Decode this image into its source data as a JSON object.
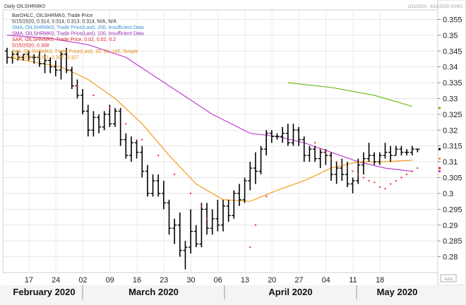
{
  "chart_data": {
    "type": "line",
    "title": "Daily OILSHRMK0",
    "header_range": "2/11/2020 - 5/21/2020 (CHG)",
    "scale_badge": "Auto",
    "legend": [
      {
        "text": "BarOHLC, OILSHRMK0, Trade Price",
        "color": "#333333"
      },
      {
        "text": "5/15/2020, 0.314, 0.314, 0.313, 0.314, N/A, N/A",
        "color": "#333333"
      },
      {
        "text": "SMA, OILSHRMK0, Trade Price(Last), 200, Insufficient Data",
        "color": "#3a8fd0"
      },
      {
        "text": "SMA, OILSHRMK0, Trade Price(Last), 100, Insufficient Data",
        "color": "#9a2ab0"
      },
      {
        "text": "SAR, OILSHRMK0, Trade Price, 0.02, 0.02, 0.2",
        "color": "#e02020"
      },
      {
        "text": "5/15/2020, 0.308",
        "color": "#e02020"
      },
      {
        "text": "IMA, OILSHRMK0, Trade Price(Last), 20, 50, 100, Simple",
        "color": "#e08a10"
      },
      {
        "text": "5/15/2020, 0.311, 0.307, 0.327",
        "color": "#e08a10"
      }
    ],
    "y_ticks": [
      "0.355",
      "0.35",
      "0.345",
      "0.34",
      "0.335",
      "0.33",
      "0.325",
      "0.32",
      "0.315",
      "0.31",
      "0.305",
      "0.3",
      "0.295",
      "0.29",
      "0.285",
      "0.28"
    ],
    "ylim": [
      0.275,
      0.358
    ],
    "x_ticks": [
      "17",
      "24",
      "02",
      "09",
      "16",
      "23",
      "30",
      "06",
      "13",
      "20",
      "27",
      "04",
      "11",
      "18"
    ],
    "months": [
      "February 2020",
      "March 2020",
      "April 2020",
      "May 2020"
    ],
    "colors": {
      "bars": "#000000",
      "ma20": "#f39c1e",
      "ma50": "#c040d0",
      "ma100": "#6cbf1a",
      "sar": "#e03020"
    },
    "bars": [
      {
        "d": 0,
        "o": 0.345,
        "h": 0.346,
        "l": 0.341,
        "c": 0.343
      },
      {
        "d": 1,
        "o": 0.343,
        "h": 0.345,
        "l": 0.341,
        "c": 0.344
      },
      {
        "d": 2,
        "o": 0.344,
        "h": 0.345,
        "l": 0.342,
        "c": 0.343
      },
      {
        "d": 3,
        "o": 0.343,
        "h": 0.344,
        "l": 0.342,
        "c": 0.344
      },
      {
        "d": 4,
        "o": 0.344,
        "h": 0.345,
        "l": 0.342,
        "c": 0.343
      },
      {
        "d": 5,
        "o": 0.343,
        "h": 0.344,
        "l": 0.341,
        "c": 0.343
      },
      {
        "d": 6,
        "o": 0.343,
        "h": 0.345,
        "l": 0.34,
        "c": 0.341
      },
      {
        "d": 7,
        "o": 0.341,
        "h": 0.344,
        "l": 0.338,
        "c": 0.342
      },
      {
        "d": 8,
        "o": 0.342,
        "h": 0.343,
        "l": 0.338,
        "c": 0.34
      },
      {
        "d": 9,
        "o": 0.34,
        "h": 0.342,
        "l": 0.337,
        "c": 0.339
      },
      {
        "d": 10,
        "o": 0.339,
        "h": 0.345,
        "l": 0.336,
        "c": 0.344
      },
      {
        "d": 11,
        "o": 0.344,
        "h": 0.346,
        "l": 0.338,
        "c": 0.339
      },
      {
        "d": 12,
        "o": 0.339,
        "h": 0.34,
        "l": 0.333,
        "c": 0.334
      },
      {
        "d": 13,
        "o": 0.334,
        "h": 0.336,
        "l": 0.33,
        "c": 0.331
      },
      {
        "d": 14,
        "o": 0.331,
        "h": 0.333,
        "l": 0.325,
        "c": 0.326
      },
      {
        "d": 15,
        "o": 0.326,
        "h": 0.328,
        "l": 0.318,
        "c": 0.32
      },
      {
        "d": 16,
        "o": 0.32,
        "h": 0.326,
        "l": 0.318,
        "c": 0.324
      },
      {
        "d": 17,
        "o": 0.324,
        "h": 0.325,
        "l": 0.319,
        "c": 0.321
      },
      {
        "d": 18,
        "o": 0.321,
        "h": 0.326,
        "l": 0.32,
        "c": 0.325
      },
      {
        "d": 19,
        "o": 0.325,
        "h": 0.328,
        "l": 0.321,
        "c": 0.322
      },
      {
        "d": 20,
        "o": 0.322,
        "h": 0.327,
        "l": 0.321,
        "c": 0.326
      },
      {
        "d": 21,
        "o": 0.326,
        "h": 0.327,
        "l": 0.315,
        "c": 0.317
      },
      {
        "d": 22,
        "o": 0.317,
        "h": 0.319,
        "l": 0.311,
        "c": 0.312
      },
      {
        "d": 23,
        "o": 0.312,
        "h": 0.318,
        "l": 0.31,
        "c": 0.316
      },
      {
        "d": 24,
        "o": 0.316,
        "h": 0.317,
        "l": 0.311,
        "c": 0.313
      },
      {
        "d": 25,
        "o": 0.313,
        "h": 0.315,
        "l": 0.305,
        "c": 0.307
      },
      {
        "d": 26,
        "o": 0.307,
        "h": 0.309,
        "l": 0.299,
        "c": 0.3
      },
      {
        "d": 27,
        "o": 0.3,
        "h": 0.306,
        "l": 0.299,
        "c": 0.304
      },
      {
        "d": 28,
        "o": 0.304,
        "h": 0.306,
        "l": 0.299,
        "c": 0.3
      },
      {
        "d": 29,
        "o": 0.3,
        "h": 0.304,
        "l": 0.295,
        "c": 0.297
      },
      {
        "d": 30,
        "o": 0.297,
        "h": 0.298,
        "l": 0.287,
        "c": 0.289
      },
      {
        "d": 31,
        "o": 0.289,
        "h": 0.292,
        "l": 0.284,
        "c": 0.29
      },
      {
        "d": 32,
        "o": 0.29,
        "h": 0.294,
        "l": 0.28,
        "c": 0.282
      },
      {
        "d": 33,
        "o": 0.282,
        "h": 0.285,
        "l": 0.276,
        "c": 0.283
      },
      {
        "d": 34,
        "o": 0.283,
        "h": 0.295,
        "l": 0.281,
        "c": 0.288
      },
      {
        "d": 35,
        "o": 0.288,
        "h": 0.29,
        "l": 0.283,
        "c": 0.284
      },
      {
        "d": 36,
        "o": 0.284,
        "h": 0.297,
        "l": 0.283,
        "c": 0.295
      },
      {
        "d": 37,
        "o": 0.295,
        "h": 0.297,
        "l": 0.287,
        "c": 0.289
      },
      {
        "d": 38,
        "o": 0.289,
        "h": 0.295,
        "l": 0.287,
        "c": 0.292
      },
      {
        "d": 39,
        "o": 0.292,
        "h": 0.298,
        "l": 0.288,
        "c": 0.29
      },
      {
        "d": 40,
        "o": 0.29,
        "h": 0.298,
        "l": 0.288,
        "c": 0.296
      },
      {
        "d": 41,
        "o": 0.296,
        "h": 0.298,
        "l": 0.291,
        "c": 0.293
      },
      {
        "d": 42,
        "o": 0.293,
        "h": 0.301,
        "l": 0.292,
        "c": 0.3
      },
      {
        "d": 43,
        "o": 0.3,
        "h": 0.303,
        "l": 0.296,
        "c": 0.298
      },
      {
        "d": 44,
        "o": 0.298,
        "h": 0.305,
        "l": 0.297,
        "c": 0.304
      },
      {
        "d": 45,
        "o": 0.304,
        "h": 0.31,
        "l": 0.301,
        "c": 0.308
      },
      {
        "d": 46,
        "o": 0.308,
        "h": 0.313,
        "l": 0.303,
        "c": 0.307
      },
      {
        "d": 47,
        "o": 0.307,
        "h": 0.315,
        "l": 0.306,
        "c": 0.314
      },
      {
        "d": 48,
        "o": 0.314,
        "h": 0.32,
        "l": 0.312,
        "c": 0.319
      },
      {
        "d": 49,
        "o": 0.319,
        "h": 0.32,
        "l": 0.316,
        "c": 0.318
      },
      {
        "d": 50,
        "o": 0.318,
        "h": 0.319,
        "l": 0.317,
        "c": 0.318
      },
      {
        "d": 51,
        "o": 0.318,
        "h": 0.321,
        "l": 0.316,
        "c": 0.319
      },
      {
        "d": 52,
        "o": 0.319,
        "h": 0.322,
        "l": 0.315,
        "c": 0.316
      },
      {
        "d": 53,
        "o": 0.316,
        "h": 0.322,
        "l": 0.315,
        "c": 0.32
      },
      {
        "d": 54,
        "o": 0.32,
        "h": 0.321,
        "l": 0.315,
        "c": 0.317
      },
      {
        "d": 55,
        "o": 0.317,
        "h": 0.318,
        "l": 0.31,
        "c": 0.312
      },
      {
        "d": 56,
        "o": 0.312,
        "h": 0.315,
        "l": 0.31,
        "c": 0.314
      },
      {
        "d": 57,
        "o": 0.314,
        "h": 0.315,
        "l": 0.31,
        "c": 0.311
      },
      {
        "d": 58,
        "o": 0.311,
        "h": 0.314,
        "l": 0.308,
        "c": 0.313
      },
      {
        "d": 59,
        "o": 0.313,
        "h": 0.314,
        "l": 0.309,
        "c": 0.312
      },
      {
        "d": 60,
        "o": 0.312,
        "h": 0.313,
        "l": 0.304,
        "c": 0.306
      },
      {
        "d": 61,
        "o": 0.306,
        "h": 0.31,
        "l": 0.303,
        "c": 0.308
      },
      {
        "d": 62,
        "o": 0.308,
        "h": 0.311,
        "l": 0.304,
        "c": 0.306
      },
      {
        "d": 63,
        "o": 0.306,
        "h": 0.31,
        "l": 0.302,
        "c": 0.303
      },
      {
        "d": 64,
        "o": 0.303,
        "h": 0.305,
        "l": 0.3,
        "c": 0.304
      },
      {
        "d": 65,
        "o": 0.304,
        "h": 0.311,
        "l": 0.303,
        "c": 0.309
      },
      {
        "d": 66,
        "o": 0.309,
        "h": 0.313,
        "l": 0.306,
        "c": 0.311
      },
      {
        "d": 67,
        "o": 0.311,
        "h": 0.316,
        "l": 0.31,
        "c": 0.312
      },
      {
        "d": 68,
        "o": 0.312,
        "h": 0.313,
        "l": 0.309,
        "c": 0.31
      },
      {
        "d": 69,
        "o": 0.31,
        "h": 0.313,
        "l": 0.309,
        "c": 0.312
      },
      {
        "d": 70,
        "o": 0.312,
        "h": 0.316,
        "l": 0.311,
        "c": 0.313
      },
      {
        "d": 71,
        "o": 0.313,
        "h": 0.315,
        "l": 0.31,
        "c": 0.312
      },
      {
        "d": 72,
        "o": 0.312,
        "h": 0.315,
        "l": 0.312,
        "c": 0.314
      },
      {
        "d": 73,
        "o": 0.314,
        "h": 0.315,
        "l": 0.312,
        "c": 0.313
      },
      {
        "d": 74,
        "o": 0.313,
        "h": 0.314,
        "l": 0.312,
        "c": 0.313
      },
      {
        "d": 75,
        "o": 0.313,
        "h": 0.315,
        "l": 0.312,
        "c": 0.314
      },
      {
        "d": 76,
        "o": 0.314,
        "h": 0.314,
        "l": 0.313,
        "c": 0.314
      }
    ],
    "ma20": [
      [
        0,
        0.343
      ],
      [
        10,
        0.34
      ],
      [
        15,
        0.336
      ],
      [
        20,
        0.33
      ],
      [
        25,
        0.322
      ],
      [
        30,
        0.312
      ],
      [
        35,
        0.303
      ],
      [
        40,
        0.298
      ],
      [
        45,
        0.2975
      ],
      [
        50,
        0.301
      ],
      [
        55,
        0.304
      ],
      [
        60,
        0.308
      ],
      [
        65,
        0.31
      ],
      [
        70,
        0.31
      ],
      [
        75,
        0.3105
      ]
    ],
    "ma50": [
      [
        0,
        0.35
      ],
      [
        8,
        0.349
      ],
      [
        15,
        0.347
      ],
      [
        22,
        0.343
      ],
      [
        30,
        0.334
      ],
      [
        38,
        0.325
      ],
      [
        45,
        0.319
      ],
      [
        50,
        0.318
      ],
      [
        55,
        0.316
      ],
      [
        60,
        0.313
      ],
      [
        65,
        0.31
      ],
      [
        70,
        0.308
      ],
      [
        75,
        0.307
      ]
    ],
    "ma100": [
      [
        52,
        0.335
      ],
      [
        60,
        0.3335
      ],
      [
        68,
        0.331
      ],
      [
        75,
        0.3275
      ]
    ],
    "sar": [
      [
        13,
        0.334
      ],
      [
        16,
        0.331
      ],
      [
        19,
        0.327
      ],
      [
        22,
        0.322
      ],
      [
        25,
        0.317
      ],
      [
        28,
        0.312
      ],
      [
        31,
        0.306
      ],
      [
        34,
        0.3
      ],
      [
        36,
        0.296
      ],
      [
        37,
        0.292
      ],
      [
        45,
        0.283
      ],
      [
        46,
        0.29
      ],
      [
        48,
        0.299
      ],
      [
        57,
        0.316
      ],
      [
        58,
        0.314
      ],
      [
        59,
        0.313
      ],
      [
        60,
        0.311
      ],
      [
        61,
        0.31
      ],
      [
        62,
        0.309
      ],
      [
        63,
        0.308
      ],
      [
        64,
        0.307
      ],
      [
        65,
        0.306
      ],
      [
        66,
        0.305
      ],
      [
        67,
        0.304
      ],
      [
        68,
        0.3035
      ],
      [
        69,
        0.302
      ],
      [
        70,
        0.3015
      ],
      [
        71,
        0.303
      ],
      [
        72,
        0.304
      ],
      [
        73,
        0.305
      ],
      [
        74,
        0.306
      ],
      [
        75,
        0.307
      ],
      [
        76,
        0.308
      ]
    ]
  }
}
